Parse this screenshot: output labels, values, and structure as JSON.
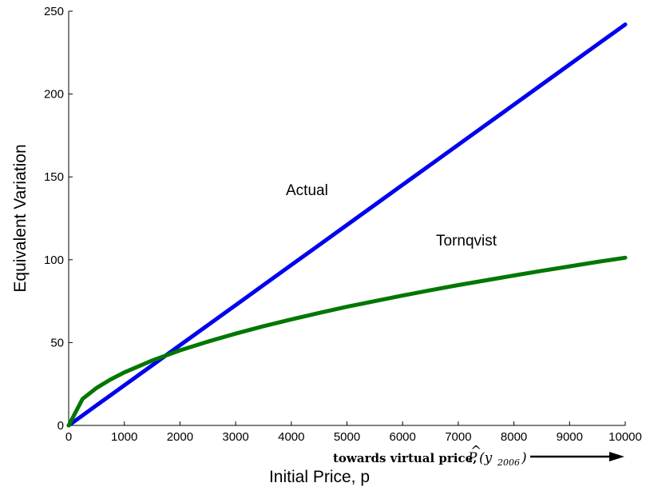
{
  "chart_data": {
    "type": "line",
    "title": "",
    "xlabel": "Initial Price, p",
    "ylabel": "Equivalent Variation",
    "xlim": [
      0,
      10000
    ],
    "ylim": [
      0,
      250
    ],
    "x_ticks": [
      0,
      1000,
      2000,
      3000,
      4000,
      5000,
      6000,
      7000,
      8000,
      9000,
      10000
    ],
    "y_ticks": [
      0,
      50,
      100,
      150,
      200,
      250
    ],
    "x": [
      0,
      250,
      500,
      750,
      1000,
      1500,
      2000,
      2500,
      3000,
      3500,
      4000,
      4500,
      5000,
      5500,
      6000,
      6500,
      7000,
      7500,
      8000,
      8500,
      9000,
      9500,
      10000
    ],
    "series": [
      {
        "name": "Actual",
        "color": "#0000ee",
        "values": [
          0,
          6.05,
          12.1,
          18.15,
          24.2,
          36.3,
          48.4,
          60.5,
          72.6,
          84.7,
          96.8,
          108.9,
          121.0,
          133.1,
          145.2,
          157.3,
          169.4,
          181.5,
          193.6,
          205.7,
          217.8,
          229.9,
          242.0
        ]
      },
      {
        "name": "Tornqvist",
        "color": "#007700",
        "values": [
          0,
          16.0,
          22.6,
          27.7,
          32.0,
          39.2,
          45.3,
          50.6,
          55.4,
          59.9,
          64.0,
          67.9,
          71.6,
          75.0,
          78.4,
          81.6,
          84.7,
          87.6,
          90.5,
          93.3,
          96.0,
          98.7,
          101.2
        ]
      }
    ],
    "annotation": {
      "text": "towards virtual price,",
      "math_p": "P",
      "math_hat": "^",
      "math_open": "(y",
      "math_sub": "2006",
      "math_close": ")"
    },
    "grid": false,
    "legend": "none"
  }
}
